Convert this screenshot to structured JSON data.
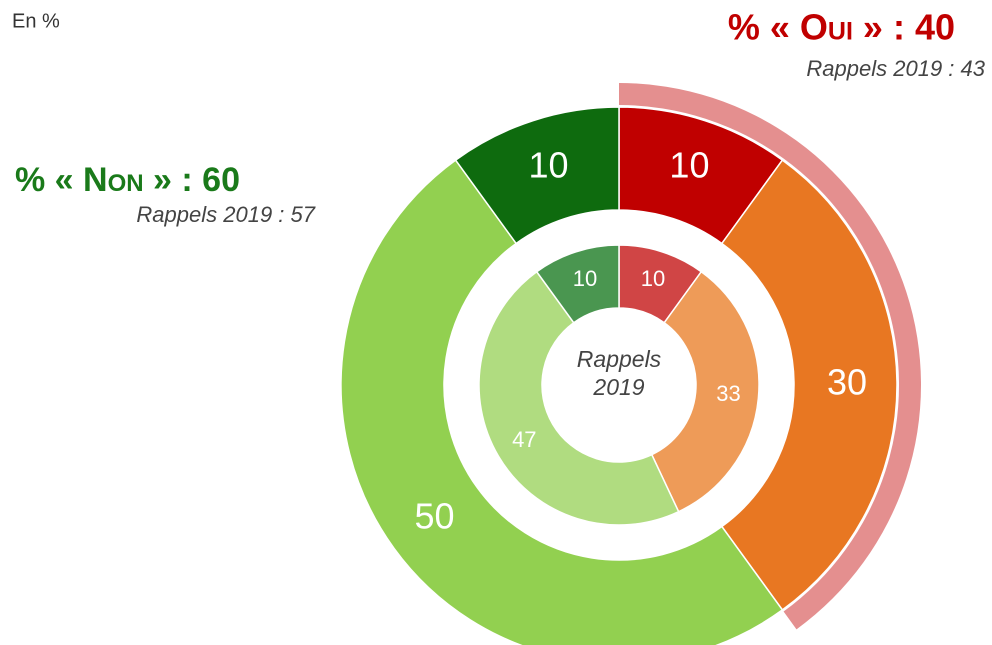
{
  "chart_data": {
    "type": "nested-donut",
    "subtitle": "En %",
    "center_label": "Rappels 2019",
    "series": [
      {
        "values": [
          10,
          30,
          50,
          10
        ],
        "colors": [
          "#c00000",
          "#e87722",
          "#92d050",
          "#0e6b0e"
        ]
      },
      {
        "values": [
          10,
          33,
          47,
          10
        ],
        "colors": [
          "#d04545",
          "#ee9b58",
          "#b0dc80",
          "#4a9650"
        ]
      }
    ],
    "highlight_color": "#e48f8f",
    "annotations": [
      {
        "text": "% « Oui » : 40",
        "color": "#c00000"
      },
      {
        "text": "Rappels 2019 : 43"
      },
      {
        "text": "% « Non » : 60",
        "color": "#1a7a1a"
      },
      {
        "text": "Rappels 2019 : 57"
      }
    ]
  }
}
